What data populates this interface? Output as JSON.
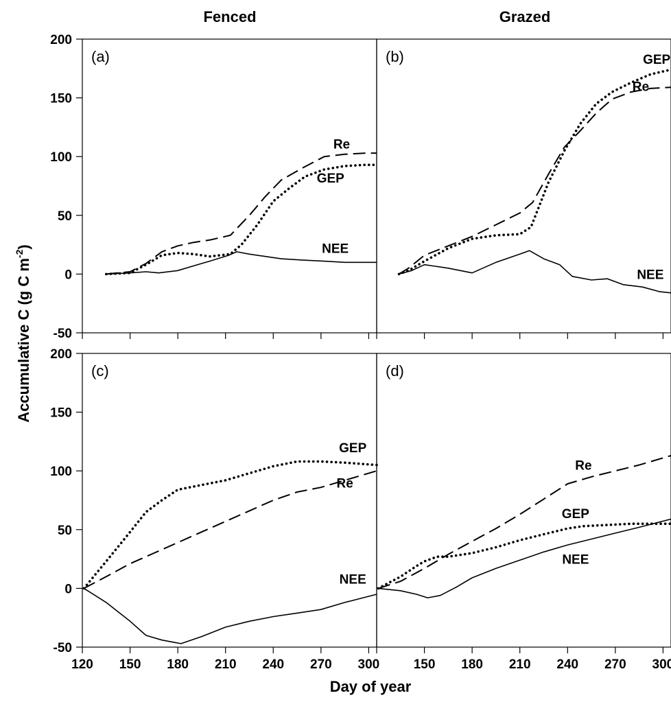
{
  "figure": {
    "column_titles": [
      "Fenced",
      "Grazed"
    ],
    "ylabel_main": "Accumulative C (g C m",
    "ylabel_sup": "-2",
    "ylabel_tail": ")",
    "xlabel": "Day of year"
  },
  "chart_data": [
    {
      "type": "line",
      "panel": "(a)",
      "column": "Fenced",
      "xlim": [
        120,
        305
      ],
      "ylim": [
        -50,
        200
      ],
      "yticks": [
        -50,
        0,
        50,
        100,
        150,
        200
      ],
      "series": [
        {
          "name": "Re",
          "style": "dashed",
          "x": [
            135,
            150,
            160,
            170,
            180,
            190,
            200,
            213,
            225,
            235,
            245,
            258,
            272,
            285,
            298,
            305
          ],
          "y": [
            0,
            2,
            9,
            19,
            24,
            27,
            29,
            33,
            50,
            66,
            80,
            90,
            100,
            102,
            103,
            103
          ]
        },
        {
          "name": "GEP",
          "style": "dotted",
          "x": [
            135,
            150,
            160,
            170,
            180,
            190,
            200,
            213,
            220,
            230,
            240,
            250,
            260,
            272,
            285,
            298,
            305
          ],
          "y": [
            0,
            1,
            8,
            16,
            18,
            17,
            15,
            17,
            25,
            42,
            62,
            73,
            83,
            89,
            92,
            93,
            93
          ]
        },
        {
          "name": "NEE",
          "style": "solid",
          "x": [
            135,
            150,
            160,
            168,
            180,
            190,
            200,
            212,
            217,
            225,
            235,
            245,
            258,
            272,
            285,
            298,
            305
          ],
          "y": [
            0,
            1,
            2,
            1,
            3,
            7,
            11,
            16,
            19,
            17,
            15,
            13,
            12,
            11,
            10,
            10,
            10
          ]
        }
      ],
      "annotations": [
        {
          "text": "Re",
          "x": 283,
          "y": 111
        },
        {
          "text": "GEP",
          "x": 276,
          "y": 82
        },
        {
          "text": "NEE",
          "x": 279,
          "y": 22
        }
      ]
    },
    {
      "type": "line",
      "panel": "(b)",
      "column": "Grazed",
      "xlim": [
        120,
        305
      ],
      "ylim": [
        -50,
        200
      ],
      "yticks": [
        -50,
        0,
        50,
        100,
        150,
        200
      ],
      "series": [
        {
          "name": "Re",
          "style": "dashed",
          "x": [
            134,
            140,
            150,
            165,
            180,
            195,
            210,
            218,
            228,
            238,
            248,
            258,
            268,
            280,
            292,
            305
          ],
          "y": [
            0,
            5,
            16,
            24,
            32,
            42,
            52,
            61,
            85,
            108,
            122,
            137,
            149,
            155,
            158,
            159
          ]
        },
        {
          "name": "GEP",
          "style": "dotted",
          "x": [
            134,
            140,
            150,
            165,
            180,
            195,
            210,
            217,
            228,
            238,
            248,
            258,
            268,
            280,
            292,
            305
          ],
          "y": [
            0,
            3,
            11,
            22,
            30,
            33,
            34,
            40,
            78,
            105,
            128,
            145,
            155,
            163,
            170,
            174
          ]
        },
        {
          "name": "NEE",
          "style": "solid",
          "x": [
            134,
            142,
            150,
            165,
            180,
            195,
            210,
            216,
            225,
            235,
            243,
            255,
            265,
            275,
            287,
            298,
            305
          ],
          "y": [
            0,
            3,
            8,
            5,
            1,
            10,
            17,
            20,
            13,
            8,
            -2,
            -5,
            -4,
            -9,
            -11,
            -15,
            -16
          ]
        }
      ],
      "annotations": [
        {
          "text": "GEP",
          "x": 296,
          "y": 183
        },
        {
          "text": "Re",
          "x": 286,
          "y": 160
        },
        {
          "text": "NEE",
          "x": 292,
          "y": 0
        }
      ]
    },
    {
      "type": "line",
      "panel": "(c)",
      "column": "Fenced",
      "xlim": [
        120,
        305
      ],
      "ylim": [
        -50,
        200
      ],
      "yticks": [
        -50,
        0,
        50,
        100,
        150,
        200
      ],
      "series": [
        {
          "name": "Re",
          "style": "dashed",
          "x": [
            121,
            135,
            150,
            165,
            180,
            195,
            210,
            225,
            240,
            255,
            270,
            285,
            305
          ],
          "y": [
            0,
            10,
            21,
            30,
            39,
            48,
            57,
            66,
            75,
            82,
            86,
            92,
            100
          ]
        },
        {
          "name": "GEP",
          "style": "dotted",
          "x": [
            121,
            135,
            150,
            160,
            170,
            180,
            195,
            210,
            225,
            240,
            255,
            270,
            285,
            305
          ],
          "y": [
            0,
            23,
            48,
            65,
            75,
            84,
            88,
            92,
            98,
            104,
            108,
            108,
            107,
            105
          ]
        },
        {
          "name": "NEE",
          "style": "solid",
          "x": [
            121,
            135,
            150,
            160,
            170,
            178,
            182,
            195,
            210,
            225,
            240,
            255,
            270,
            285,
            305
          ],
          "y": [
            0,
            -12,
            -28,
            -40,
            -44,
            -46,
            -47,
            -41,
            -33,
            -28,
            -24,
            -21,
            -18,
            -12,
            -5
          ]
        }
      ],
      "annotations": [
        {
          "text": "GEP",
          "x": 290,
          "y": 120
        },
        {
          "text": "Re",
          "x": 285,
          "y": 90
        },
        {
          "text": "NEE",
          "x": 290,
          "y": 8
        }
      ]
    },
    {
      "type": "line",
      "panel": "(d)",
      "column": "Grazed",
      "xlim": [
        120,
        305
      ],
      "ylim": [
        -50,
        200
      ],
      "yticks": [
        -50,
        0,
        50,
        100,
        150,
        200
      ],
      "series": [
        {
          "name": "Re",
          "style": "dashed",
          "x": [
            121,
            135,
            150,
            165,
            180,
            195,
            210,
            225,
            240,
            255,
            270,
            285,
            305
          ],
          "y": [
            0,
            6,
            17,
            29,
            40,
            51,
            63,
            76,
            89,
            95,
            100,
            105,
            113
          ]
        },
        {
          "name": "GEP",
          "style": "dotted",
          "x": [
            121,
            135,
            145,
            150,
            158,
            165,
            180,
            195,
            210,
            225,
            240,
            250,
            265,
            280,
            295,
            305
          ],
          "y": [
            0,
            10,
            19,
            23,
            27,
            27,
            30,
            35,
            41,
            46,
            51,
            53,
            54,
            55,
            55,
            55
          ]
        },
        {
          "name": "NEE",
          "style": "solid",
          "x": [
            121,
            135,
            145,
            152,
            160,
            170,
            180,
            195,
            210,
            225,
            240,
            255,
            270,
            285,
            305
          ],
          "y": [
            0,
            -2,
            -5,
            -8,
            -6,
            1,
            9,
            17,
            24,
            31,
            37,
            42,
            47,
            52,
            59
          ]
        }
      ],
      "annotations": [
        {
          "text": "Re",
          "x": 250,
          "y": 105
        },
        {
          "text": "GEP",
          "x": 245,
          "y": 64
        },
        {
          "text": "NEE",
          "x": 245,
          "y": 25
        }
      ]
    }
  ],
  "x_tick_labels": [
    "120",
    "150",
    "180",
    "210",
    "240",
    "270",
    "300"
  ]
}
